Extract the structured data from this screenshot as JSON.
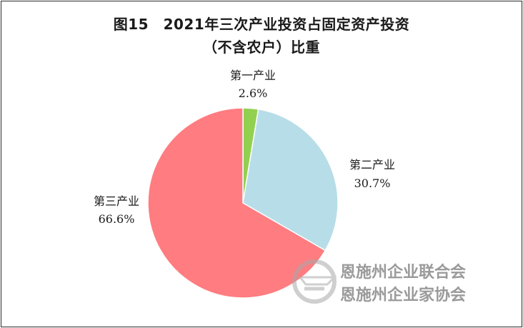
{
  "figure": {
    "title_line1": "图15　2021年三次产业投资占固定资产投资",
    "title_line2": "（不含农户）比重"
  },
  "chart_data": {
    "type": "pie",
    "title": "图15　2021年三次产业投资占固定资产投资（不含农户）比重",
    "slices": [
      {
        "name": "第一产业",
        "value": 2.6,
        "label": "2.6%",
        "color": "#92d050"
      },
      {
        "name": "第二产业",
        "value": 30.7,
        "label": "30.7%",
        "color": "#b7dde8"
      },
      {
        "name": "第三产业",
        "value": 66.6,
        "label": "66.6%",
        "color": "#ff7c80"
      }
    ]
  },
  "watermark": {
    "line1": "恩施州企业联合会",
    "line2": "恩施州企业家协会"
  }
}
